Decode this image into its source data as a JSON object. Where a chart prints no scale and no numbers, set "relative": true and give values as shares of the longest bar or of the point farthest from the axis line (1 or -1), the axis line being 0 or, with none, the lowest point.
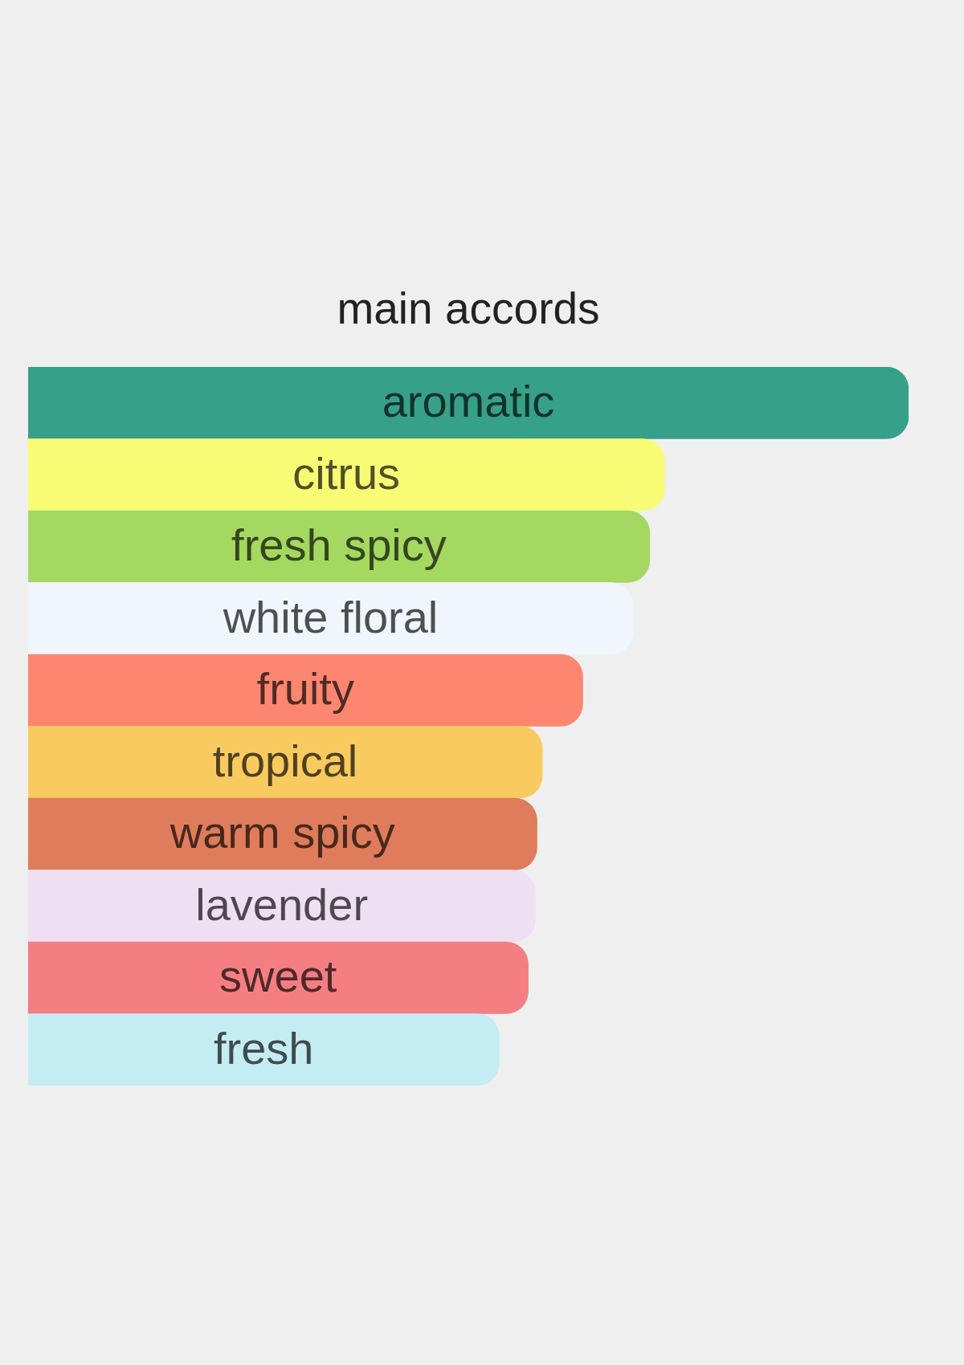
{
  "chart_data": {
    "type": "bar",
    "title": "main accords",
    "orientation": "horizontal",
    "relative": true,
    "categories": [
      "aromatic",
      "citrus",
      "fresh spicy",
      "white floral",
      "fruity",
      "tropical",
      "warm spicy",
      "lavender",
      "sweet",
      "fresh"
    ],
    "values": [
      1,
      0.723,
      0.706,
      0.687,
      0.63,
      0.584,
      0.578,
      0.576,
      0.568,
      0.535
    ],
    "colors": [
      "#37a089",
      "#f8fc74",
      "#a4d860",
      "#f1f5fc",
      "#fc8670",
      "#f8ca60",
      "#df7c5b",
      "#efdff3",
      "#f47e82",
      "#c4edf3"
    ]
  }
}
